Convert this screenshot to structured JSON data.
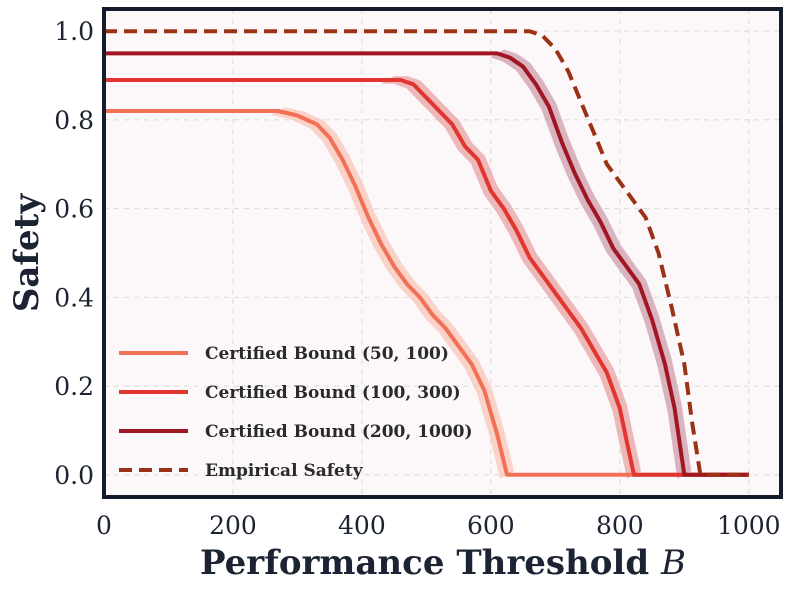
{
  "chart_data": {
    "type": "line",
    "title": "",
    "xlabel_text": "Performance Threshold",
    "xlabel_var": "B",
    "ylabel": "Safety",
    "xlim": [
      0,
      1050
    ],
    "ylim": [
      -0.05,
      1.05
    ],
    "xticks": [
      0,
      200,
      400,
      600,
      800,
      1000
    ],
    "yticks": [
      0.0,
      0.2,
      0.4,
      0.6,
      0.8,
      1.0
    ],
    "xtick_labels": [
      "0",
      "200",
      "400",
      "600",
      "800",
      "1000"
    ],
    "ytick_labels": [
      "0.0",
      "0.2",
      "0.4",
      "0.6",
      "0.8",
      "1.0"
    ],
    "grid": true,
    "legend_position": "lower-left",
    "plot_background": "#fcf8fa",
    "frame_color": "#141b2b",
    "series": [
      {
        "name": "Certified Bound (50, 100)",
        "color": "#f27055",
        "style": "solid",
        "band": true,
        "band_color": "#f9c8bc",
        "x": [
          0,
          270,
          300,
          330,
          350,
          370,
          390,
          410,
          430,
          450,
          470,
          490,
          510,
          530,
          550,
          570,
          590,
          610,
          625,
          1000
        ],
        "y": [
          0.82,
          0.82,
          0.81,
          0.79,
          0.76,
          0.71,
          0.65,
          0.58,
          0.52,
          0.47,
          0.43,
          0.4,
          0.36,
          0.33,
          0.29,
          0.25,
          0.19,
          0.09,
          0.0,
          0.0
        ]
      },
      {
        "name": "Certified Bound (100, 300)",
        "color": "#e0362f",
        "style": "solid",
        "band": true,
        "band_color": "#eaa6a8",
        "x": [
          0,
          440,
          460,
          480,
          500,
          520,
          540,
          560,
          580,
          600,
          620,
          640,
          660,
          680,
          700,
          720,
          740,
          760,
          780,
          800,
          810,
          822,
          1000
        ],
        "y": [
          0.89,
          0.89,
          0.89,
          0.88,
          0.85,
          0.82,
          0.79,
          0.74,
          0.71,
          0.64,
          0.6,
          0.55,
          0.49,
          0.45,
          0.41,
          0.37,
          0.33,
          0.28,
          0.23,
          0.15,
          0.08,
          0.0,
          0.0
        ]
      },
      {
        "name": "Certified Bound (200, 1000)",
        "color": "#a01622",
        "style": "solid",
        "band": true,
        "band_color": "#cfa2b0",
        "x": [
          0,
          610,
          630,
          650,
          670,
          690,
          710,
          730,
          750,
          770,
          790,
          810,
          830,
          850,
          870,
          885,
          900,
          1000
        ],
        "y": [
          0.95,
          0.95,
          0.94,
          0.92,
          0.88,
          0.83,
          0.75,
          0.68,
          0.62,
          0.57,
          0.51,
          0.47,
          0.43,
          0.35,
          0.25,
          0.15,
          0.0,
          0.0
        ]
      },
      {
        "name": "Empirical Safety",
        "color": "#9a3216",
        "style": "dashed",
        "band": false,
        "x": [
          0,
          660,
          680,
          700,
          720,
          740,
          760,
          780,
          800,
          820,
          840,
          860,
          880,
          900,
          912,
          925,
          1000
        ],
        "y": [
          1.0,
          1.0,
          0.99,
          0.96,
          0.91,
          0.84,
          0.77,
          0.7,
          0.66,
          0.62,
          0.58,
          0.5,
          0.38,
          0.25,
          0.12,
          0.0,
          0.0
        ]
      }
    ]
  }
}
